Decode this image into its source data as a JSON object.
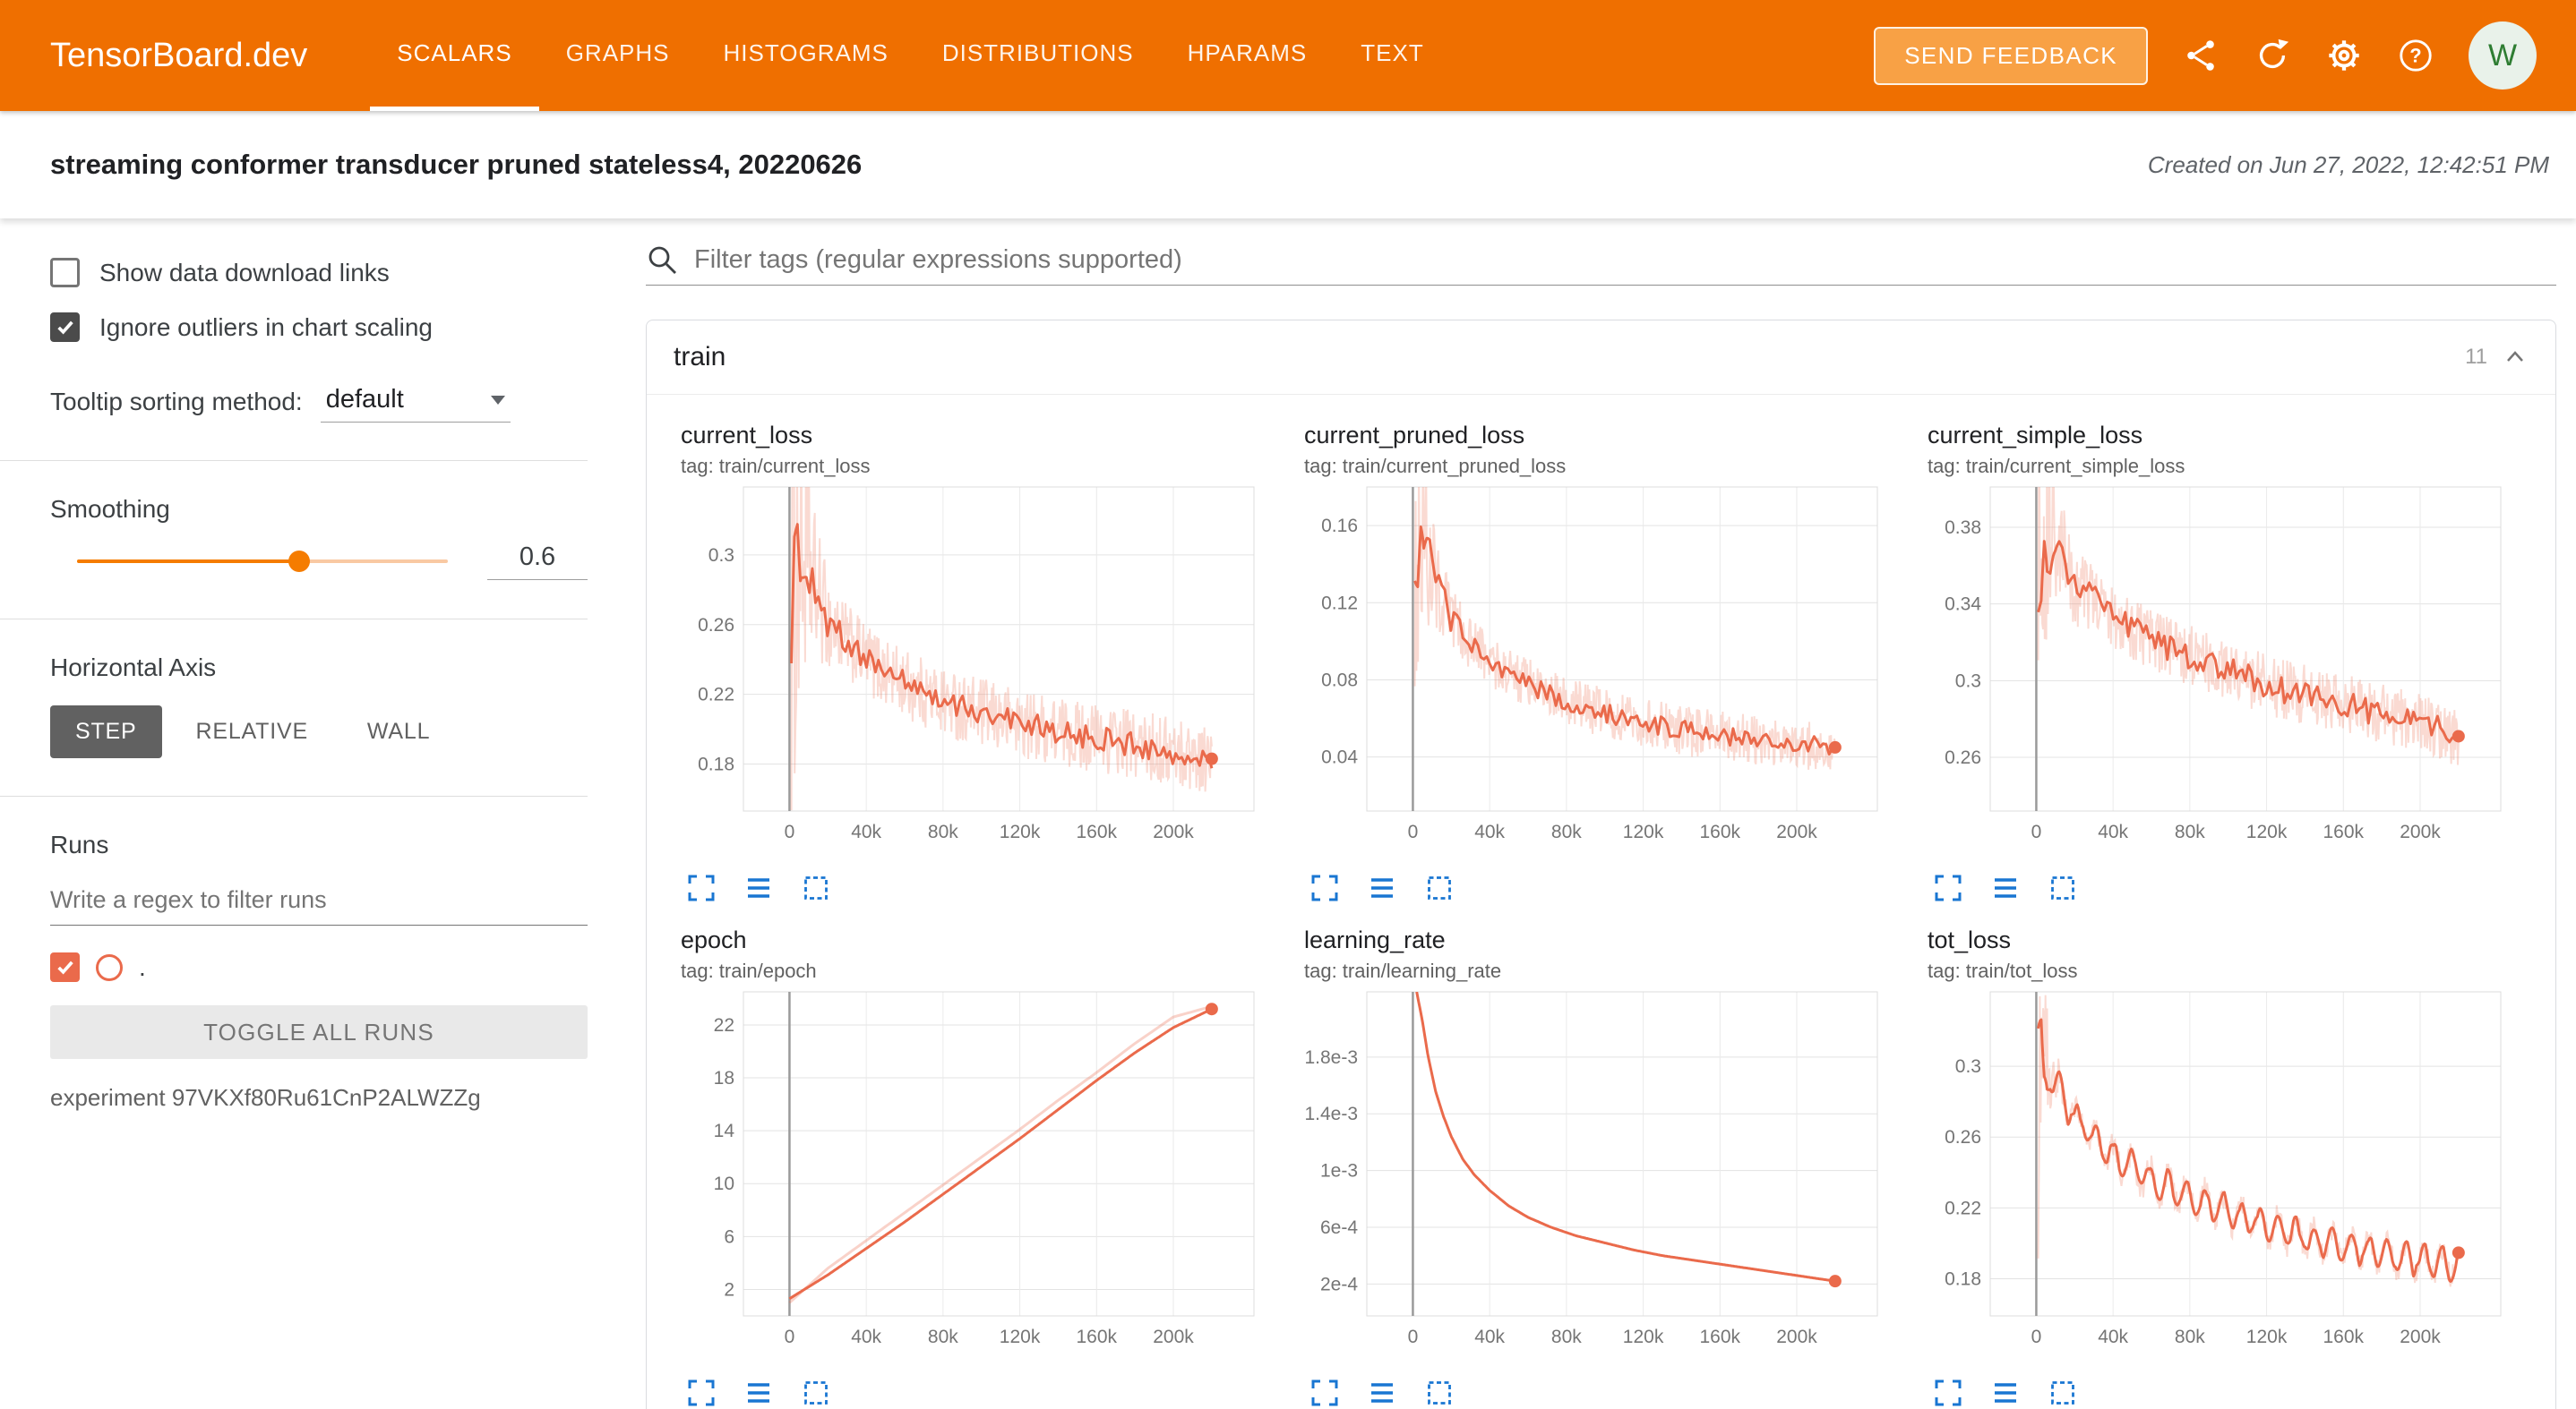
{
  "header": {
    "logo": "TensorBoard.dev",
    "tabs": [
      {
        "label": "SCALARS",
        "active": true
      },
      {
        "label": "GRAPHS",
        "active": false
      },
      {
        "label": "HISTOGRAMS",
        "active": false
      },
      {
        "label": "DISTRIBUTIONS",
        "active": false
      },
      {
        "label": "HPARAMS",
        "active": false
      },
      {
        "label": "TEXT",
        "active": false
      }
    ],
    "send_feedback_label": "SEND FEEDBACK",
    "icons": [
      "share-icon",
      "refresh-icon",
      "settings-icon",
      "help-icon"
    ],
    "avatar_letter": "W"
  },
  "experiment_bar": {
    "title": "streaming conformer transducer pruned stateless4, 20220626",
    "created": "Created on Jun 27, 2022, 12:42:51 PM"
  },
  "sidebar": {
    "show_download_label": "Show data download links",
    "ignore_outliers_label": "Ignore outliers in chart scaling",
    "tooltip_sorting_label": "Tooltip sorting method:",
    "tooltip_sorting_value": "default",
    "smoothing_label": "Smoothing",
    "smoothing_value": "0.6",
    "horizontal_axis_label": "Horizontal Axis",
    "axis_buttons": [
      "STEP",
      "RELATIVE",
      "WALL"
    ],
    "runs_label": "Runs",
    "runs_filter_placeholder": "Write a regex to filter runs",
    "run_item_label": ".",
    "toggle_all_label": "TOGGLE ALL RUNS",
    "experiment_id": "experiment 97VKXf80Ru61CnP2ALWZZg"
  },
  "main": {
    "filter_placeholder": "Filter tags (regular expressions supported)",
    "section": {
      "name": "train",
      "count": "11"
    },
    "chart_toolbar_icons": [
      "expand-chart-icon",
      "data-table-icon",
      "fit-domain-icon"
    ]
  },
  "colors": {
    "header_orange": "#ef6f00",
    "run_color": "#ea6a4b",
    "icon_blue": "#1976d2",
    "slider_orange": "#f57c00"
  },
  "chart_data": [
    {
      "type": "line",
      "title": "current_loss",
      "tag_label": "tag: train/current_loss",
      "x_range": [
        -24000,
        242000
      ],
      "x_ticks": [
        {
          "v": 0,
          "label": "0"
        },
        {
          "v": 40000,
          "label": "40k"
        },
        {
          "v": 80000,
          "label": "80k"
        },
        {
          "v": 120000,
          "label": "120k"
        },
        {
          "v": 160000,
          "label": "160k"
        },
        {
          "v": 200000,
          "label": "200k"
        }
      ],
      "y_range": [
        0.153,
        0.339
      ],
      "y_ticks": [
        {
          "v": 0.18,
          "label": "0.18"
        },
        {
          "v": 0.22,
          "label": "0.22"
        },
        {
          "v": 0.26,
          "label": "0.26"
        },
        {
          "v": 0.3,
          "label": "0.3"
        }
      ],
      "trend": [
        [
          1000,
          0.29
        ],
        [
          6000,
          0.302
        ],
        [
          12000,
          0.285
        ],
        [
          20000,
          0.262
        ],
        [
          30000,
          0.25
        ],
        [
          40000,
          0.24
        ],
        [
          55000,
          0.229
        ],
        [
          70000,
          0.221
        ],
        [
          85000,
          0.214
        ],
        [
          100000,
          0.209
        ],
        [
          115000,
          0.205
        ],
        [
          130000,
          0.201
        ],
        [
          145000,
          0.198
        ],
        [
          160000,
          0.195
        ],
        [
          175000,
          0.192
        ],
        [
          190000,
          0.189
        ],
        [
          205000,
          0.186
        ],
        [
          220000,
          0.183
        ]
      ],
      "noise": {
        "main": 0.007,
        "raw": 0.02,
        "boost": 7,
        "tau": 7000
      },
      "end_dot": true
    },
    {
      "type": "line",
      "title": "current_pruned_loss",
      "tag_label": "tag: train/current_pruned_loss",
      "x_range": [
        -24000,
        242000
      ],
      "x_ticks": [
        {
          "v": 0,
          "label": "0"
        },
        {
          "v": 40000,
          "label": "40k"
        },
        {
          "v": 80000,
          "label": "80k"
        },
        {
          "v": 120000,
          "label": "120k"
        },
        {
          "v": 160000,
          "label": "160k"
        },
        {
          "v": 200000,
          "label": "200k"
        }
      ],
      "y_range": [
        0.012,
        0.18
      ],
      "y_ticks": [
        {
          "v": 0.04,
          "label": "0.04"
        },
        {
          "v": 0.08,
          "label": "0.08"
        },
        {
          "v": 0.12,
          "label": "0.12"
        },
        {
          "v": 0.16,
          "label": "0.16"
        }
      ],
      "trend": [
        [
          1000,
          0.148
        ],
        [
          5000,
          0.158
        ],
        [
          10000,
          0.138
        ],
        [
          15000,
          0.122
        ],
        [
          20000,
          0.112
        ],
        [
          30000,
          0.099
        ],
        [
          40000,
          0.09
        ],
        [
          55000,
          0.081
        ],
        [
          70000,
          0.073
        ],
        [
          85000,
          0.067
        ],
        [
          100000,
          0.063
        ],
        [
          115000,
          0.059
        ],
        [
          130000,
          0.056
        ],
        [
          145000,
          0.053
        ],
        [
          160000,
          0.051
        ],
        [
          175000,
          0.049
        ],
        [
          190000,
          0.047
        ],
        [
          205000,
          0.046
        ],
        [
          220000,
          0.045
        ]
      ],
      "noise": {
        "main": 0.005,
        "raw": 0.013,
        "boost": 6,
        "tau": 7000
      },
      "end_dot": true
    },
    {
      "type": "line",
      "title": "current_simple_loss",
      "tag_label": "tag: train/current_simple_loss",
      "x_range": [
        -24000,
        242000
      ],
      "x_ticks": [
        {
          "v": 0,
          "label": "0"
        },
        {
          "v": 40000,
          "label": "40k"
        },
        {
          "v": 80000,
          "label": "80k"
        },
        {
          "v": 120000,
          "label": "120k"
        },
        {
          "v": 160000,
          "label": "160k"
        },
        {
          "v": 200000,
          "label": "200k"
        }
      ],
      "y_range": [
        0.232,
        0.401
      ],
      "y_ticks": [
        {
          "v": 0.26,
          "label": "0.26"
        },
        {
          "v": 0.3,
          "label": "0.3"
        },
        {
          "v": 0.34,
          "label": "0.34"
        },
        {
          "v": 0.38,
          "label": "0.38"
        }
      ],
      "trend": [
        [
          1000,
          0.372
        ],
        [
          5000,
          0.385
        ],
        [
          10000,
          0.368
        ],
        [
          20000,
          0.35
        ],
        [
          30000,
          0.342
        ],
        [
          40000,
          0.334
        ],
        [
          55000,
          0.324
        ],
        [
          70000,
          0.317
        ],
        [
          85000,
          0.311
        ],
        [
          100000,
          0.305
        ],
        [
          115000,
          0.3
        ],
        [
          130000,
          0.295
        ],
        [
          145000,
          0.291
        ],
        [
          160000,
          0.288
        ],
        [
          175000,
          0.284
        ],
        [
          190000,
          0.28
        ],
        [
          205000,
          0.276
        ],
        [
          220000,
          0.271
        ]
      ],
      "noise": {
        "main": 0.007,
        "raw": 0.016,
        "boost": 5,
        "tau": 8000
      },
      "end_dot": true
    },
    {
      "type": "line",
      "title": "epoch",
      "tag_label": "tag: train/epoch",
      "x_range": [
        -24000,
        242000
      ],
      "x_ticks": [
        {
          "v": 0,
          "label": "0"
        },
        {
          "v": 40000,
          "label": "40k"
        },
        {
          "v": 80000,
          "label": "80k"
        },
        {
          "v": 120000,
          "label": "120k"
        },
        {
          "v": 160000,
          "label": "160k"
        },
        {
          "v": 200000,
          "label": "200k"
        }
      ],
      "y_range": [
        0,
        24.5
      ],
      "y_ticks": [
        {
          "v": 2,
          "label": "2"
        },
        {
          "v": 6,
          "label": "6"
        },
        {
          "v": 10,
          "label": "10"
        },
        {
          "v": 14,
          "label": "14"
        },
        {
          "v": 18,
          "label": "18"
        },
        {
          "v": 22,
          "label": "22"
        }
      ],
      "trend": [
        [
          0,
          1.3
        ],
        [
          20000,
          3.1
        ],
        [
          40000,
          5.1
        ],
        [
          60000,
          7.1
        ],
        [
          80000,
          9.2
        ],
        [
          100000,
          11.3
        ],
        [
          120000,
          13.4
        ],
        [
          140000,
          15.6
        ],
        [
          160000,
          17.8
        ],
        [
          180000,
          19.9
        ],
        [
          200000,
          21.8
        ],
        [
          220000,
          23.2
        ]
      ],
      "raw_trend": [
        [
          0,
          1.0
        ],
        [
          20000,
          3.6
        ],
        [
          40000,
          5.7
        ],
        [
          60000,
          7.8
        ],
        [
          80000,
          9.9
        ],
        [
          100000,
          12.0
        ],
        [
          120000,
          14.1
        ],
        [
          140000,
          16.3
        ],
        [
          160000,
          18.4
        ],
        [
          180000,
          20.6
        ],
        [
          200000,
          22.6
        ],
        [
          220000,
          23.4
        ]
      ],
      "end_dot": true
    },
    {
      "type": "line",
      "title": "learning_rate",
      "tag_label": "tag: train/learning_rate",
      "x_range": [
        -24000,
        242000
      ],
      "x_ticks": [
        {
          "v": 0,
          "label": "0"
        },
        {
          "v": 40000,
          "label": "40k"
        },
        {
          "v": 80000,
          "label": "80k"
        },
        {
          "v": 120000,
          "label": "120k"
        },
        {
          "v": 160000,
          "label": "160k"
        },
        {
          "v": 200000,
          "label": "200k"
        }
      ],
      "y_range": [
        -2.5e-05,
        0.00226
      ],
      "y_ticks": [
        {
          "v": 0.0002,
          "label": "2e-4"
        },
        {
          "v": 0.0006,
          "label": "6e-4"
        },
        {
          "v": 0.001,
          "label": "1e-3"
        },
        {
          "v": 0.0014,
          "label": "1.4e-3"
        },
        {
          "v": 0.0018,
          "label": "1.8e-3"
        }
      ],
      "trend": [
        [
          2000,
          0.00226
        ],
        [
          5000,
          0.00205
        ],
        [
          8000,
          0.0018
        ],
        [
          12000,
          0.00155
        ],
        [
          16000,
          0.00138
        ],
        [
          20000,
          0.00124
        ],
        [
          26000,
          0.00108
        ],
        [
          32000,
          0.00097
        ],
        [
          40000,
          0.00086
        ],
        [
          50000,
          0.00075
        ],
        [
          60000,
          0.00067
        ],
        [
          72000,
          0.0006
        ],
        [
          85000,
          0.00054
        ],
        [
          100000,
          0.00049
        ],
        [
          115000,
          0.00044
        ],
        [
          130000,
          0.0004
        ],
        [
          145000,
          0.00037
        ],
        [
          160000,
          0.00034
        ],
        [
          175000,
          0.00031
        ],
        [
          190000,
          0.00028
        ],
        [
          205000,
          0.00025
        ],
        [
          220000,
          0.00022
        ]
      ],
      "end_dot": true
    },
    {
      "type": "line",
      "title": "tot_loss",
      "tag_label": "tag: train/tot_loss",
      "x_range": [
        -24000,
        242000
      ],
      "x_ticks": [
        {
          "v": 0,
          "label": "0"
        },
        {
          "v": 40000,
          "label": "40k"
        },
        {
          "v": 80000,
          "label": "80k"
        },
        {
          "v": 120000,
          "label": "120k"
        },
        {
          "v": 160000,
          "label": "160k"
        },
        {
          "v": 200000,
          "label": "200k"
        }
      ],
      "y_range": [
        0.159,
        0.342
      ],
      "y_ticks": [
        {
          "v": 0.18,
          "label": "0.18"
        },
        {
          "v": 0.22,
          "label": "0.22"
        },
        {
          "v": 0.26,
          "label": "0.26"
        },
        {
          "v": 0.3,
          "label": "0.3"
        }
      ],
      "trend": [
        [
          1000,
          0.3
        ],
        [
          5000,
          0.306
        ],
        [
          10000,
          0.29
        ],
        [
          20000,
          0.272
        ],
        [
          30000,
          0.259
        ],
        [
          40000,
          0.249
        ],
        [
          55000,
          0.239
        ],
        [
          70000,
          0.231
        ],
        [
          85000,
          0.224
        ],
        [
          100000,
          0.218
        ],
        [
          115000,
          0.212
        ],
        [
          130000,
          0.207
        ],
        [
          145000,
          0.202
        ],
        [
          160000,
          0.199
        ],
        [
          175000,
          0.195
        ],
        [
          190000,
          0.192
        ],
        [
          205000,
          0.19
        ],
        [
          220000,
          0.188
        ]
      ],
      "noise": {
        "main": 0.003,
        "raw": 0.007,
        "boost": 18,
        "tau": 3000
      },
      "wave": {
        "amp": 0.008,
        "len": 9500
      },
      "end_dot": true
    }
  ]
}
